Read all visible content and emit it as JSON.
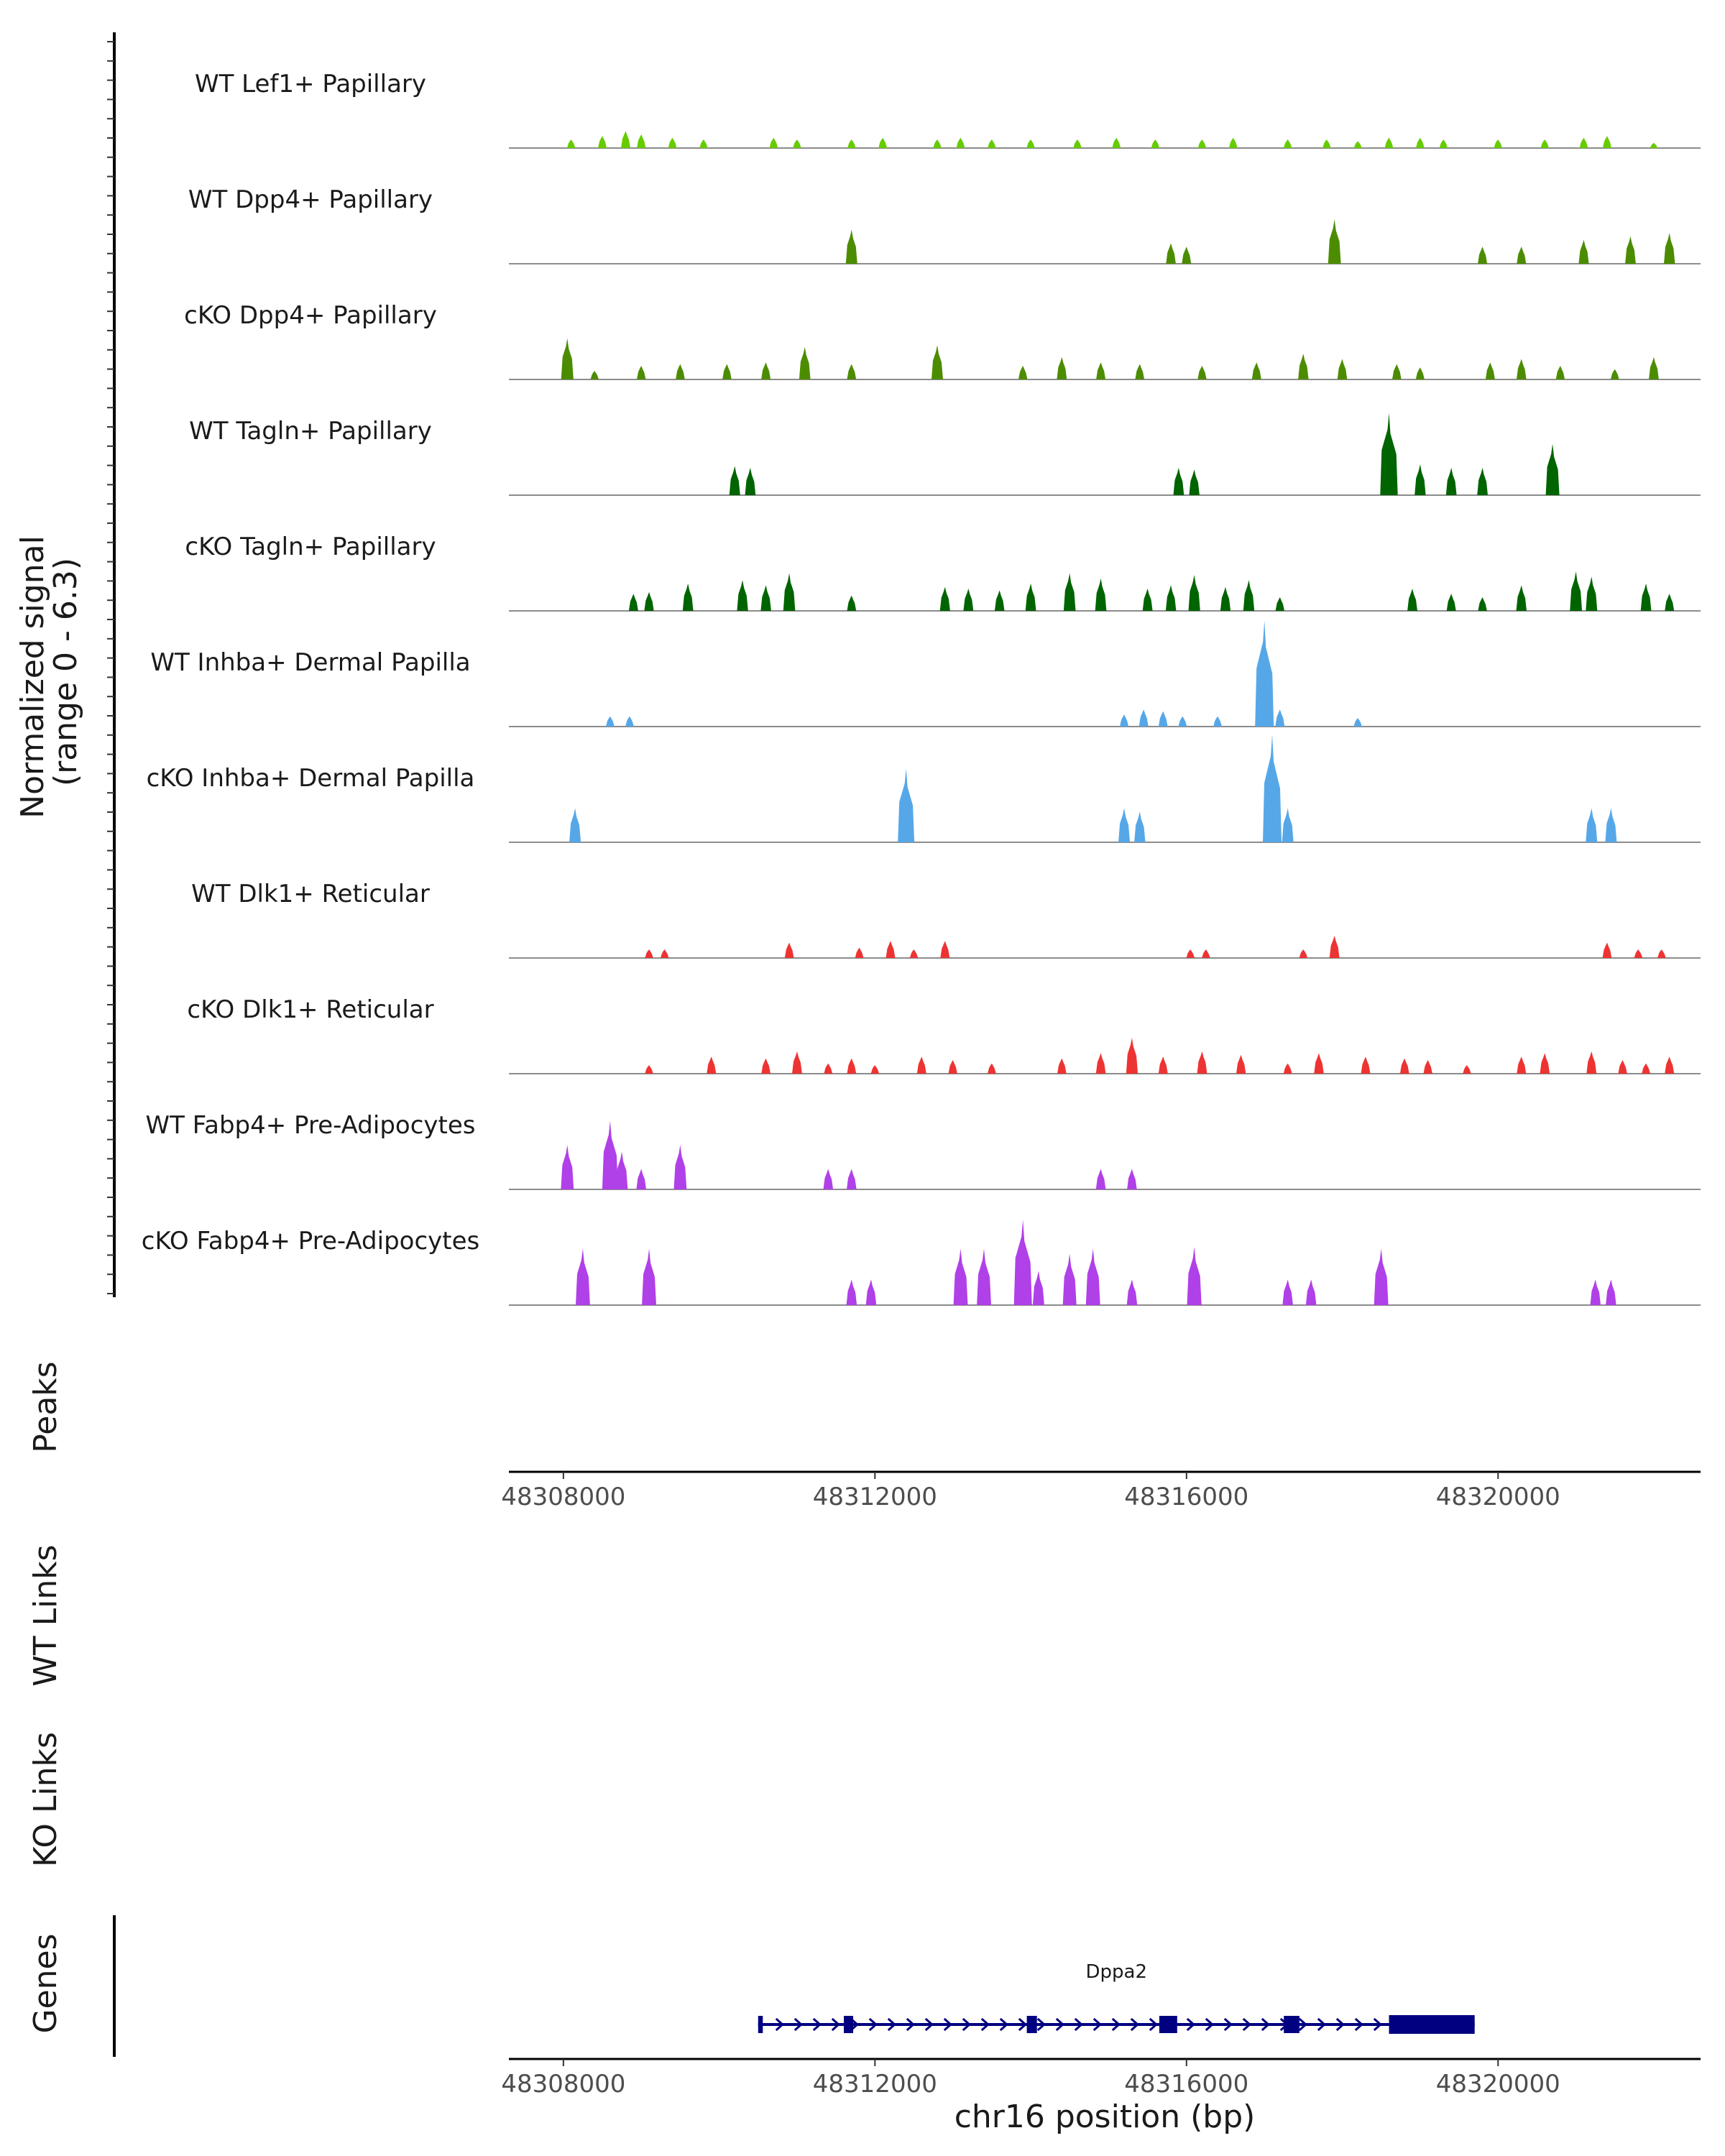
{
  "chart_data": {
    "type": "area",
    "title": "",
    "xlabel": "chr16 position (bp)",
    "ylabel": "Normalized signal\n(range 0 - 6.3)",
    "ylabel_lines": [
      "Normalized signal",
      "(range 0 - 6.3)"
    ],
    "ylim": [
      0,
      6.3
    ],
    "xlim": [
      48307300,
      48322600
    ],
    "x_ticks": [
      48308000,
      48312000,
      48316000,
      48320000
    ],
    "x_tick_labels": [
      "48308000",
      "48312000",
      "48316000",
      "48320000"
    ],
    "series": [
      {
        "name": "WT Lef1+ Papillary",
        "color": "#66CC00",
        "peaks": [
          [
            48308100,
            0.5
          ],
          [
            48308500,
            0.7
          ],
          [
            48308800,
            1.0
          ],
          [
            48309000,
            0.8
          ],
          [
            48309400,
            0.6
          ],
          [
            48309800,
            0.5
          ],
          [
            48310700,
            0.6
          ],
          [
            48311000,
            0.5
          ],
          [
            48311700,
            0.5
          ],
          [
            48312100,
            0.6
          ],
          [
            48312800,
            0.5
          ],
          [
            48313100,
            0.6
          ],
          [
            48313500,
            0.5
          ],
          [
            48314000,
            0.5
          ],
          [
            48314600,
            0.5
          ],
          [
            48315100,
            0.6
          ],
          [
            48315600,
            0.5
          ],
          [
            48316200,
            0.5
          ],
          [
            48316600,
            0.6
          ],
          [
            48317300,
            0.5
          ],
          [
            48317800,
            0.5
          ],
          [
            48318200,
            0.4
          ],
          [
            48318600,
            0.6
          ],
          [
            48319000,
            0.6
          ],
          [
            48319300,
            0.5
          ],
          [
            48320000,
            0.5
          ],
          [
            48320600,
            0.5
          ],
          [
            48321100,
            0.6
          ],
          [
            48321400,
            0.7
          ],
          [
            48322000,
            0.3
          ]
        ]
      },
      {
        "name": "WT Dpp4+ Papillary",
        "color": "#4C8C00",
        "peaks": [
          [
            48311700,
            2.0
          ],
          [
            48315800,
            1.2
          ],
          [
            48316000,
            1.0
          ],
          [
            48317900,
            2.6
          ],
          [
            48319800,
            1.0
          ],
          [
            48320300,
            1.0
          ],
          [
            48321100,
            1.4
          ],
          [
            48321700,
            1.6
          ],
          [
            48322200,
            1.8
          ]
        ]
      },
      {
        "name": "cKO Dpp4+ Papillary",
        "color": "#4C8C00",
        "peaks": [
          [
            48308050,
            2.4
          ],
          [
            48308400,
            0.5
          ],
          [
            48309000,
            0.8
          ],
          [
            48309500,
            0.9
          ],
          [
            48310100,
            0.9
          ],
          [
            48310600,
            1.0
          ],
          [
            48311100,
            1.9
          ],
          [
            48311700,
            0.9
          ],
          [
            48312800,
            2.0
          ],
          [
            48313900,
            0.8
          ],
          [
            48314400,
            1.3
          ],
          [
            48314900,
            1.0
          ],
          [
            48315400,
            0.9
          ],
          [
            48316200,
            0.8
          ],
          [
            48316900,
            1.0
          ],
          [
            48317500,
            1.5
          ],
          [
            48318000,
            1.2
          ],
          [
            48318700,
            0.9
          ],
          [
            48319000,
            0.7
          ],
          [
            48319900,
            1.0
          ],
          [
            48320300,
            1.2
          ],
          [
            48320800,
            0.8
          ],
          [
            48321500,
            0.6
          ],
          [
            48322000,
            1.3
          ]
        ]
      },
      {
        "name": "WT Tagln+ Papillary",
        "color": "#006400",
        "peaks": [
          [
            48310200,
            1.7
          ],
          [
            48310400,
            1.6
          ],
          [
            48315900,
            1.6
          ],
          [
            48316100,
            1.5
          ],
          [
            48318600,
            4.8
          ],
          [
            48319000,
            1.8
          ],
          [
            48319400,
            1.6
          ],
          [
            48319800,
            1.6
          ],
          [
            48320700,
            3.0
          ]
        ]
      },
      {
        "name": "cKO Tagln+ Papillary",
        "color": "#006400",
        "peaks": [
          [
            48308900,
            1.0
          ],
          [
            48309100,
            1.1
          ],
          [
            48309600,
            1.6
          ],
          [
            48310300,
            1.8
          ],
          [
            48310600,
            1.5
          ],
          [
            48310900,
            2.2
          ],
          [
            48311700,
            0.9
          ],
          [
            48312900,
            1.4
          ],
          [
            48313200,
            1.3
          ],
          [
            48313600,
            1.2
          ],
          [
            48314000,
            1.6
          ],
          [
            48314500,
            2.2
          ],
          [
            48314900,
            1.9
          ],
          [
            48315500,
            1.3
          ],
          [
            48315800,
            1.5
          ],
          [
            48316100,
            2.1
          ],
          [
            48316500,
            1.4
          ],
          [
            48316800,
            1.8
          ],
          [
            48317200,
            0.8
          ],
          [
            48318900,
            1.3
          ],
          [
            48319400,
            1.0
          ],
          [
            48319800,
            0.8
          ],
          [
            48320300,
            1.5
          ],
          [
            48321000,
            2.3
          ],
          [
            48321200,
            2.0
          ],
          [
            48321900,
            1.6
          ],
          [
            48322200,
            1.0
          ]
        ]
      },
      {
        "name": "WT Inhba+ Dermal Papilla",
        "color": "#56A7E8",
        "peaks": [
          [
            48308600,
            0.6
          ],
          [
            48308850,
            0.6
          ],
          [
            48315200,
            0.7
          ],
          [
            48315450,
            1.0
          ],
          [
            48315700,
            0.9
          ],
          [
            48315950,
            0.6
          ],
          [
            48316400,
            0.6
          ],
          [
            48317000,
            6.2
          ],
          [
            48317200,
            1.0
          ],
          [
            48318200,
            0.5
          ]
        ]
      },
      {
        "name": "cKO Inhba+ Dermal Papilla",
        "color": "#56A7E8",
        "peaks": [
          [
            48308150,
            2.0
          ],
          [
            48312400,
            4.3
          ],
          [
            48315200,
            2.0
          ],
          [
            48315400,
            1.8
          ],
          [
            48317100,
            6.3
          ],
          [
            48317300,
            2.0
          ],
          [
            48321200,
            2.0
          ],
          [
            48321450,
            2.0
          ]
        ]
      },
      {
        "name": "WT Dlk1+ Reticular",
        "color": "#EE3333",
        "peaks": [
          [
            48309100,
            0.5
          ],
          [
            48309300,
            0.5
          ],
          [
            48310900,
            0.9
          ],
          [
            48311800,
            0.6
          ],
          [
            48312200,
            1.0
          ],
          [
            48312500,
            0.5
          ],
          [
            48312900,
            1.0
          ],
          [
            48316050,
            0.5
          ],
          [
            48316250,
            0.5
          ],
          [
            48317500,
            0.5
          ],
          [
            48317900,
            1.3
          ],
          [
            48321400,
            0.9
          ],
          [
            48321800,
            0.5
          ],
          [
            48322100,
            0.5
          ]
        ]
      },
      {
        "name": "cKO Dlk1+ Reticular",
        "color": "#EE3333",
        "peaks": [
          [
            48309100,
            0.5
          ],
          [
            48309900,
            1.0
          ],
          [
            48310600,
            0.9
          ],
          [
            48311000,
            1.3
          ],
          [
            48311400,
            0.6
          ],
          [
            48311700,
            0.9
          ],
          [
            48312000,
            0.5
          ],
          [
            48312600,
            1.0
          ],
          [
            48313000,
            0.8
          ],
          [
            48313500,
            0.6
          ],
          [
            48314400,
            0.9
          ],
          [
            48314900,
            1.2
          ],
          [
            48315300,
            2.1
          ],
          [
            48315700,
            1.0
          ],
          [
            48316200,
            1.3
          ],
          [
            48316700,
            1.1
          ],
          [
            48317300,
            0.6
          ],
          [
            48317700,
            1.2
          ],
          [
            48318300,
            1.0
          ],
          [
            48318800,
            0.9
          ],
          [
            48319100,
            0.8
          ],
          [
            48319600,
            0.5
          ],
          [
            48320300,
            1.0
          ],
          [
            48320600,
            1.2
          ],
          [
            48321200,
            1.3
          ],
          [
            48321600,
            0.8
          ],
          [
            48321900,
            0.6
          ],
          [
            48322200,
            1.0
          ]
        ]
      },
      {
        "name": "WT Fabp4+ Pre-Adipocytes",
        "color": "#B040E8",
        "peaks": [
          [
            48308050,
            2.6
          ],
          [
            48308600,
            4.0
          ],
          [
            48308750,
            2.2
          ],
          [
            48309000,
            1.2
          ],
          [
            48309500,
            2.6
          ],
          [
            48311400,
            1.2
          ],
          [
            48311700,
            1.2
          ],
          [
            48314900,
            1.2
          ],
          [
            48315300,
            1.2
          ]
        ]
      },
      {
        "name": "cKO Fabp4+ Pre-Adipocytes",
        "color": "#B040E8",
        "peaks": [
          [
            48308250,
            3.3
          ],
          [
            48309100,
            3.3
          ],
          [
            48311700,
            1.5
          ],
          [
            48311950,
            1.5
          ],
          [
            48313100,
            3.3
          ],
          [
            48313400,
            3.3
          ],
          [
            48313900,
            5.0
          ],
          [
            48314100,
            2.0
          ],
          [
            48314500,
            3.0
          ],
          [
            48314800,
            3.3
          ],
          [
            48315300,
            1.5
          ],
          [
            48316100,
            3.4
          ],
          [
            48317300,
            1.5
          ],
          [
            48317600,
            1.5
          ],
          [
            48318500,
            3.3
          ],
          [
            48321250,
            1.5
          ],
          [
            48321450,
            1.5
          ]
        ]
      }
    ],
    "other_tracks": {
      "peaks_label": "Peaks",
      "wt_links_label": "WT Links",
      "ko_links_label": "KO Links",
      "genes_label": "Genes"
    },
    "gene": {
      "name": "Dppa2",
      "start": 48310500,
      "end": 48319700,
      "strand": "+",
      "color": "#000080",
      "exons": [
        [
          48310500,
          48310560
        ],
        [
          48311600,
          48311720
        ],
        [
          48313950,
          48314080
        ],
        [
          48315650,
          48315880
        ],
        [
          48317250,
          48317450
        ],
        [
          48318600,
          48319700
        ]
      ],
      "thick_exons": [
        [
          48318600,
          48319700
        ]
      ]
    }
  }
}
